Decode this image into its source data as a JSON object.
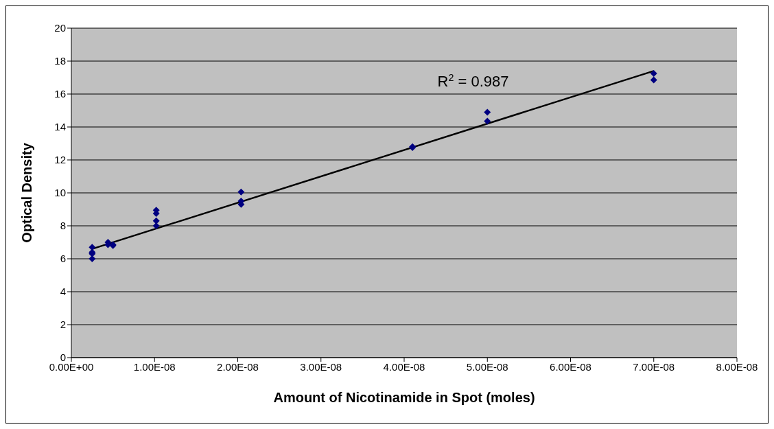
{
  "chart_data": {
    "type": "scatter",
    "xlabel": "Amount of Nicotinamide in Spot (moles)",
    "ylabel": "Optical Density",
    "series": [
      {
        "color": "#000080",
        "marker": "diamond",
        "x": [
          2.5e-09,
          2.5e-09,
          2.5e-09,
          2.5e-09,
          4.4e-09,
          4.4e-09,
          5e-09,
          5e-09,
          1.02e-08,
          1.02e-08,
          1.02e-08,
          1.02e-08,
          2.04e-08,
          2.04e-08,
          2.04e-08,
          4.1e-08,
          4.1e-08,
          5e-08,
          5e-08,
          7e-08,
          7e-08
        ],
        "values": [
          6.7,
          6.4,
          6.3,
          6.0,
          7.0,
          6.85,
          6.85,
          6.8,
          8.95,
          8.75,
          8.3,
          8.0,
          10.05,
          9.5,
          9.3,
          12.8,
          12.75,
          14.9,
          14.35,
          17.25,
          16.85
        ]
      },
      {
        "type": "line",
        "color": "#000000",
        "x": [
          2.5e-09,
          7e-08
        ],
        "values": [
          6.6,
          17.4
        ]
      }
    ],
    "xlim": [
      0,
      8e-08
    ],
    "xticks": [
      {
        "value": 0,
        "label": "0.00E+00"
      },
      {
        "value": 1e-08,
        "label": "1.00E-08"
      },
      {
        "value": 2e-08,
        "label": "2.00E-08"
      },
      {
        "value": 3e-08,
        "label": "3.00E-08"
      },
      {
        "value": 4e-08,
        "label": "4.00E-08"
      },
      {
        "value": 5e-08,
        "label": "5.00E-08"
      },
      {
        "value": 6e-08,
        "label": "6.00E-08"
      },
      {
        "value": 7e-08,
        "label": "7.00E-08"
      },
      {
        "value": 8e-08,
        "label": "8.00E-08"
      }
    ],
    "ylim": [
      0,
      20
    ],
    "yticks": [
      0,
      2,
      4,
      6,
      8,
      10,
      12,
      14,
      16,
      18,
      20
    ],
    "grid": "y",
    "legend": false,
    "annotations": [
      "R$^{2}$ = 0.987"
    ]
  }
}
